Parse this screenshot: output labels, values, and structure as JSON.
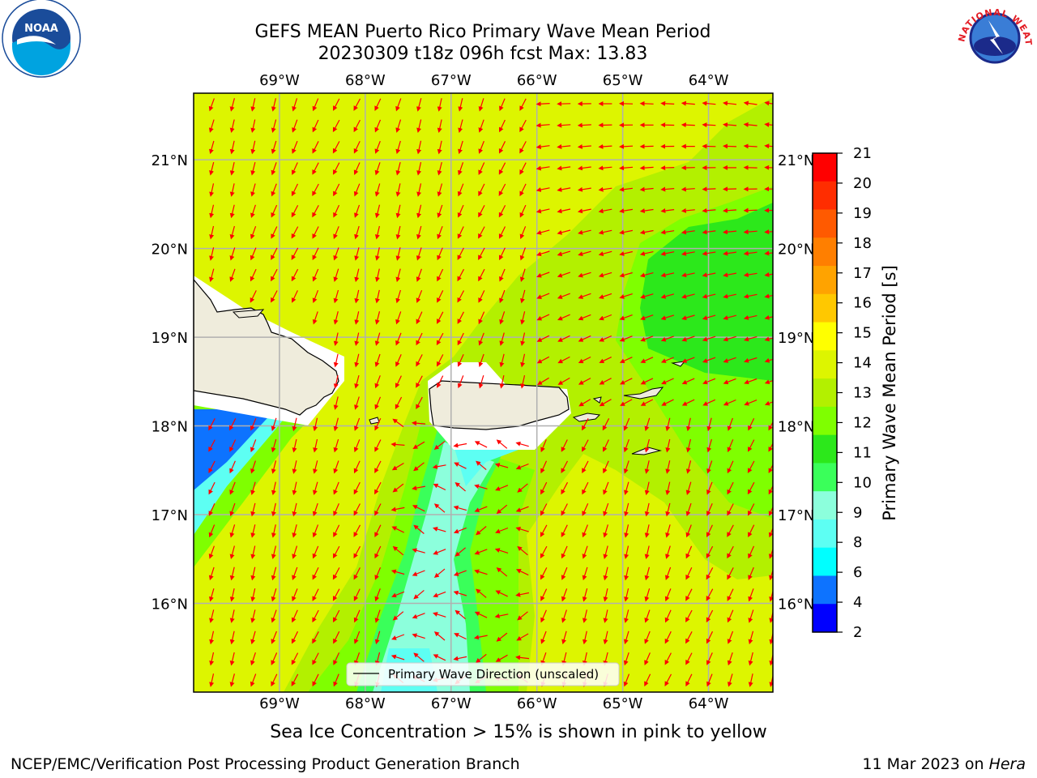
{
  "title": {
    "line1": "GEFS MEAN Puerto Rico Primary Wave Mean Period",
    "line2": "20230309 t18z 096h fcst   Max: 13.83"
  },
  "axes": {
    "lon_labels": [
      "69°W",
      "68°W",
      "67°W",
      "66°W",
      "65°W",
      "64°W"
    ],
    "lat_labels": [
      "21°N",
      "20°N",
      "19°N",
      "18°N",
      "17°N",
      "16°N"
    ],
    "lon_range": [
      -70.0,
      -63.25
    ],
    "lat_range": [
      15.0,
      21.75
    ]
  },
  "colorbar": {
    "label": "Primary Wave Mean Period [s]",
    "ticks": [
      "21",
      "20",
      "19",
      "18",
      "17",
      "16",
      "15",
      "14",
      "13",
      "12",
      "11",
      "10",
      "9",
      "8",
      "6",
      "4",
      "2"
    ],
    "colors": [
      "#ff0000",
      "#ff2d00",
      "#ff5a00",
      "#ff7f00",
      "#ffa300",
      "#ffc800",
      "#ffff00",
      "#ddf500",
      "#b3f000",
      "#7fff00",
      "#2ce81b",
      "#3aff5a",
      "#8cffdc",
      "#5dfff3",
      "#00ffff",
      "#0d73ff",
      "#0000ff"
    ]
  },
  "legend": {
    "label": "Primary Wave Direction (unscaled)"
  },
  "caption": "Sea Ice Concentration > 15% is shown in pink to yellow",
  "footer": {
    "left": "NCEP/EMC/Verification Post Processing Product Generation Branch",
    "right_prefix": "11 Mar 2023 on ",
    "right_italic": "Hera"
  },
  "logos": {
    "left_text": "NOAA",
    "right_text": "NATIONAL WEATHER SERVICE"
  },
  "colors": {
    "arrow": "#ff0000",
    "land": "#efecdc",
    "grid": "#b0b0b0"
  }
}
